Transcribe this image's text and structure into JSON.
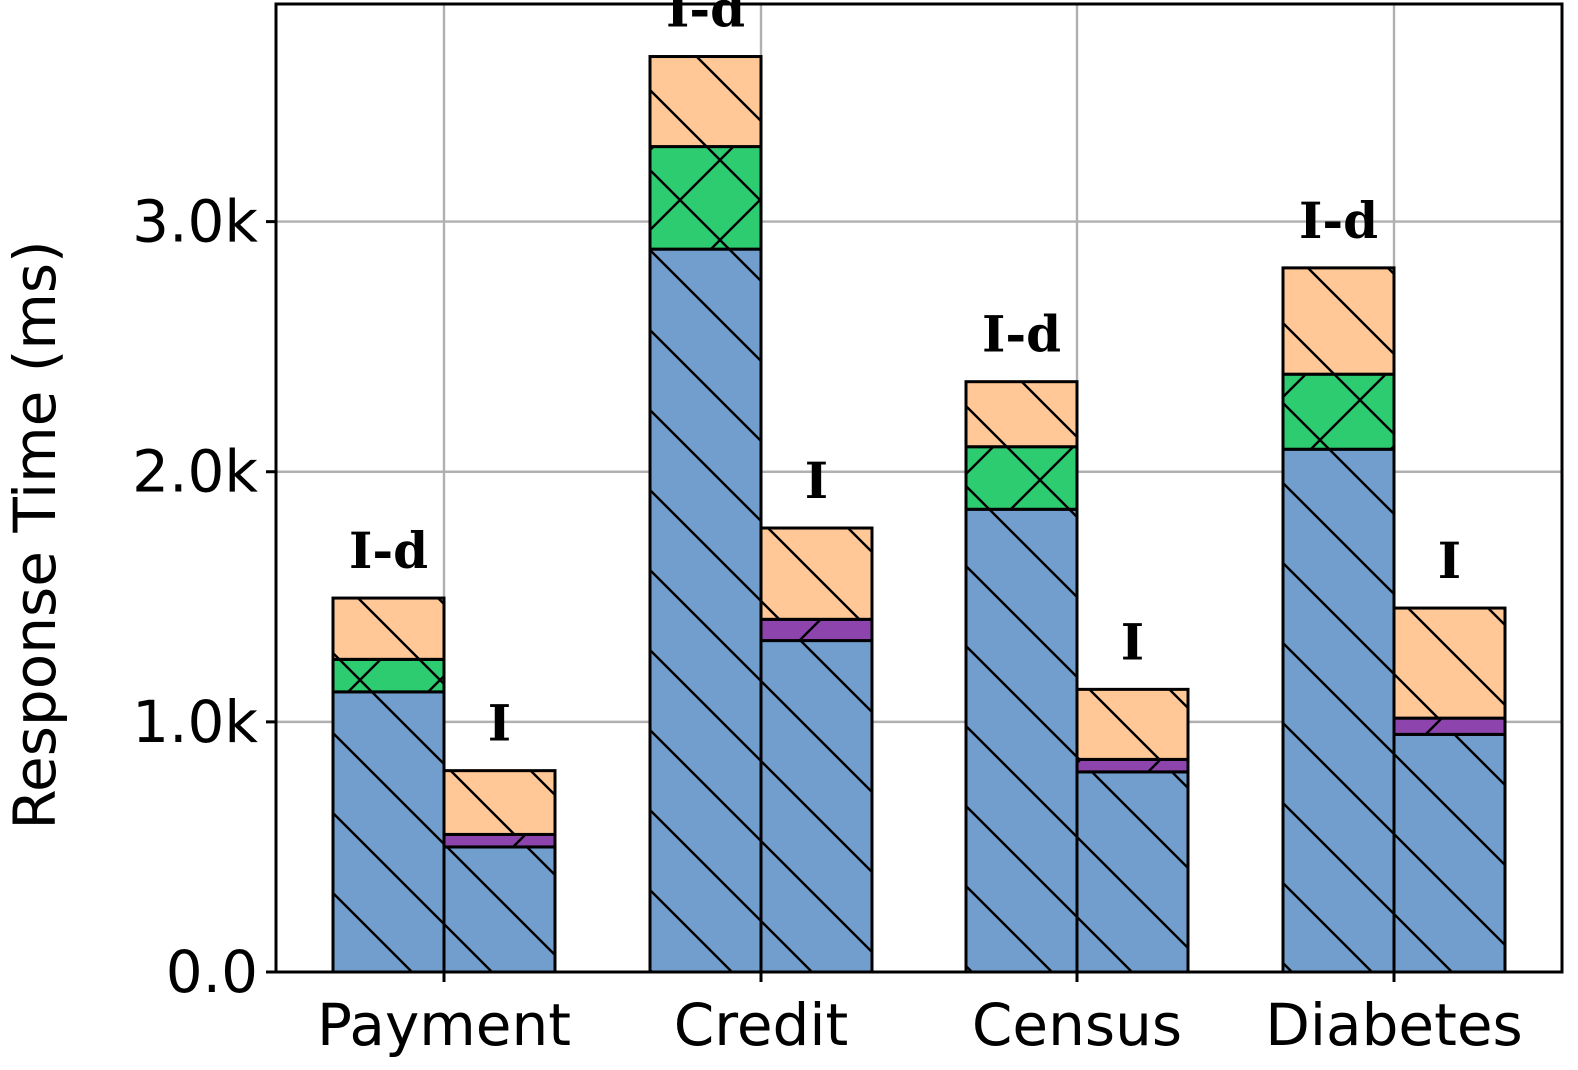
{
  "chart_data": {
    "type": "bar",
    "stacked": true,
    "grouped": true,
    "title": "",
    "xlabel": "",
    "ylabel": "Response Time (ms)",
    "ylim": [
      0,
      3870
    ],
    "yticks": [
      0,
      1000,
      2000,
      3000
    ],
    "ytick_labels": [
      "0.0",
      "1.0k",
      "2.0k",
      "3.0k"
    ],
    "grid": true,
    "categories": [
      "Payment",
      "Credit",
      "Census",
      "Diabetes"
    ],
    "bar_labels": [
      "I-d",
      "I"
    ],
    "series_style": [
      {
        "color": "#729ece",
        "hatch": "backslash"
      },
      {
        "color": "#2ecc71",
        "hatch": "cross"
      },
      {
        "color": "#8e44ad",
        "hatch": "slash"
      },
      {
        "color": "#ffc896",
        "hatch": "backslash"
      }
    ],
    "groups": [
      {
        "category": "Payment",
        "bars": [
          {
            "label": "I-d",
            "segments": [
              1120,
              130,
              0,
              245
            ]
          },
          {
            "label": "I",
            "segments": [
              500,
              0,
              50,
              255
            ]
          }
        ]
      },
      {
        "category": "Credit",
        "bars": [
          {
            "label": "I-d",
            "segments": [
              2890,
              410,
              0,
              360
            ]
          },
          {
            "label": "I",
            "segments": [
              1325,
              0,
              85,
              365
            ]
          }
        ]
      },
      {
        "category": "Census",
        "bars": [
          {
            "label": "I-d",
            "segments": [
              1850,
              250,
              0,
              260
            ]
          },
          {
            "label": "I",
            "segments": [
              800,
              0,
              50,
              280
            ]
          }
        ]
      },
      {
        "category": "Diabetes",
        "bars": [
          {
            "label": "I-d",
            "segments": [
              2090,
              300,
              0,
              425
            ]
          },
          {
            "label": "I",
            "segments": [
              950,
              0,
              65,
              440
            ]
          }
        ]
      }
    ]
  }
}
